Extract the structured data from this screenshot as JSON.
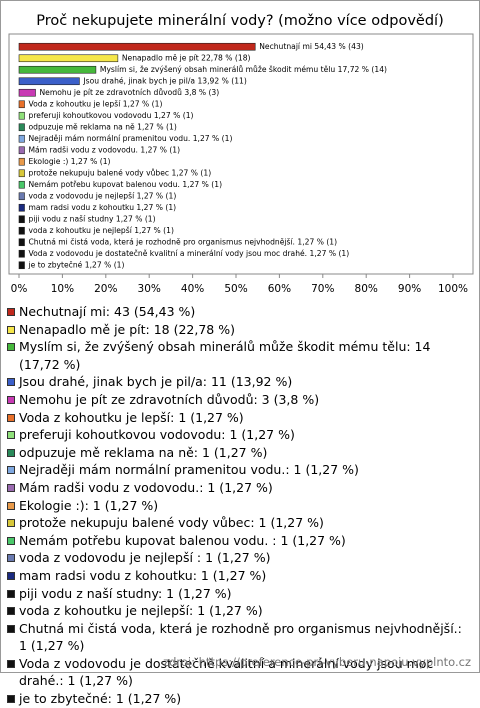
{
  "chart_data": {
    "type": "bar",
    "orientation": "horizontal",
    "title": "Proč nekupujete minerální vody? (možno více odpovědí)",
    "categories": [
      "Nechutnají mi",
      "Nenapadlo mě je pít",
      "Myslím si, že zvýšený obsah minerálů může škodit mému tělu",
      "Jsou drahé, jinak bych je pil/a",
      "Nemohu je pít ze zdravotních důvodů",
      "Voda z kohoutku je lepší",
      "preferuji kohoutkovou vodovodu",
      "odpuzuje mě reklama na ně",
      "Nejraději mám normální pramenitou vodu.",
      "Mám radši vodu z vodovodu.",
      "Ekologie :)",
      "protože nekupuju balené vody vůbec",
      "Nemám potřebu kupovat balenou vodu.",
      "voda z vodovodu je nejlepší",
      "mam radsi vodu z kohoutku",
      "piji vodu z naší studny",
      "voda z kohoutku je nejlepší",
      "Chutná mi čistá voda, která je rozhodně pro organismus nejvhodnější.",
      "Voda z vodovodu je dostatečně kvalitní a minerální vody jsou moc drahé.",
      "je to zbytečné"
    ],
    "values": [
      54.43,
      22.78,
      17.72,
      13.92,
      3.8,
      1.27,
      1.27,
      1.27,
      1.27,
      1.27,
      1.27,
      1.27,
      1.27,
      1.27,
      1.27,
      1.27,
      1.27,
      1.27,
      1.27,
      1.27
    ],
    "value_labels": [
      "Nechutnají mi 54,43 % (43)",
      "Nenapadlo mě je pít 22,78 % (18)",
      "Myslím si, že zvýšený obsah minerálů může škodit mému tělu 17,72 % (14)",
      "Jsou drahé, jinak bych je pil/a 13,92 % (11)",
      "Nemohu je pít ze zdravotních důvodů 3,8 % (3)",
      "Voda z kohoutku je lepší 1,27 % (1)",
      "preferuji kohoutkovou vodovodu 1,27 % (1)",
      "odpuzuje mě reklama na ně 1,27 % (1)",
      "Nejraději mám normální pramenitou vodu. 1,27 % (1)",
      "Mám radši vodu z vodovodu. 1,27 % (1)",
      "Ekologie :) 1,27 % (1)",
      "protože nekupuju balené vody vůbec 1,27 % (1)",
      "Nemám potřebu kupovat balenou vodu.  1,27 % (1)",
      "voda z vodovodu je nejlepší  1,27 % (1)",
      "mam radsi vodu z kohoutku 1,27 % (1)",
      "piji vodu z naší studny 1,27 % (1)",
      "voda z kohoutku je nejlepší 1,27 % (1)",
      "Chutná mi čistá voda, která je rozhodně pro organismus nejvhodnější. 1,27 % (1)",
      "Voda z vodovodu je dostatečně kvalitní a minerální vody jsou moc drahé. 1,27 % (1)",
      "je to zbytečné 1,27 % (1)"
    ],
    "legend_labels": [
      "Nechutnají mi: 43 (54,43 %)",
      "Nenapadlo mě je pít: 18 (22,78 %)",
      "Myslím si, že zvýšený obsah minerálů může škodit mému tělu: 14 (17,72 %)",
      "Jsou drahé, jinak bych je pil/a: 11 (13,92 %)",
      "Nemohu je pít ze zdravotních důvodů: 3 (3,8 %)",
      "Voda z kohoutku je lepší: 1 (1,27 %)",
      "preferuji kohoutkovou vodovodu: 1 (1,27 %)",
      "odpuzuje mě reklama na ně: 1 (1,27 %)",
      "Nejraději mám normální pramenitou vodu.: 1 (1,27 %)",
      "Mám radši vodu z vodovodu.: 1 (1,27 %)",
      "Ekologie :): 1 (1,27 %)",
      "protože nekupuju balené vody vůbec: 1 (1,27 %)",
      "Nemám potřebu kupovat balenou vodu. : 1 (1,27 %)",
      "voda z vodovodu je nejlepší : 1 (1,27 %)",
      "mam radsi vodu z kohoutku: 1 (1,27 %)",
      "piji vodu z naší studny: 1 (1,27 %)",
      "voda z kohoutku je nejlepší: 1 (1,27 %)",
      "Chutná mi čistá voda, která je rozhodně pro organismus nejvhodnější.: 1 (1,27 %)",
      "Voda z vodovodu je dostatečně kvalitní a minerální vody jsou moc drahé.: 1 (1,27 %)",
      "je to zbytečné: 1 (1,27 %)"
    ],
    "colors": [
      "#c0281c",
      "#f5e64a",
      "#46b83c",
      "#3b5fc9",
      "#c83ab4",
      "#e8702a",
      "#8fe07a",
      "#2a8a5a",
      "#7fa8e0",
      "#9a6ab0",
      "#e89a4a",
      "#d8c83a",
      "#4ac86a",
      "#6a7ab0",
      "#1a2a80",
      "#111111",
      "#111111",
      "#111111",
      "#111111",
      "#111111"
    ],
    "xlim": [
      0,
      100
    ],
    "xticks": [
      {
        "value": 0,
        "label": "0%"
      },
      {
        "value": 10,
        "label": "10%"
      },
      {
        "value": 20,
        "label": "20%"
      },
      {
        "value": 30,
        "label": "30%"
      },
      {
        "value": 40,
        "label": "40%"
      },
      {
        "value": 50,
        "label": "50%"
      },
      {
        "value": 60,
        "label": "60%"
      },
      {
        "value": 70,
        "label": "70%"
      },
      {
        "value": 80,
        "label": "80%"
      },
      {
        "value": 90,
        "label": "90%"
      },
      {
        "value": 100,
        "label": "100%"
      }
    ],
    "grid": false,
    "source": "zdroj: https://preference-pri-vyberu-napoju.vyplnto.cz"
  }
}
